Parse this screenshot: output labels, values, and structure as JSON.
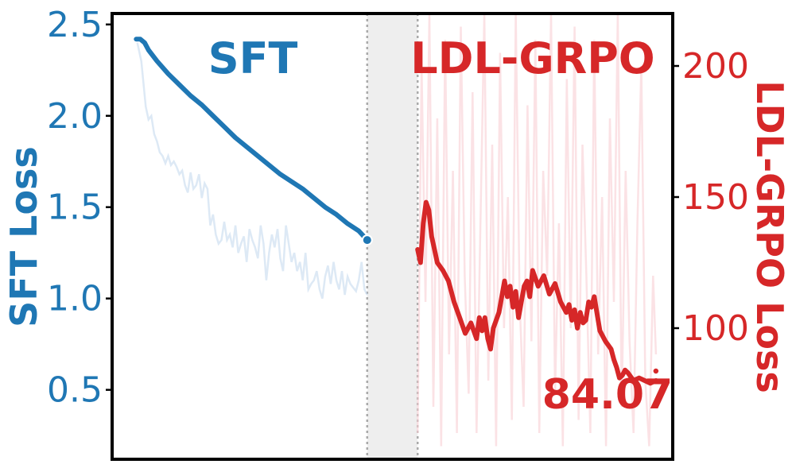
{
  "chart_data": {
    "type": "line",
    "colors": {
      "sft": "#1f77b4",
      "grpo": "#d62728",
      "sft_faint": "#c6dbef",
      "grpo_faint": "#f9cfd3",
      "gap": "#eeeeee",
      "divider": "#aaaaaa"
    },
    "phase_labels": {
      "sft": "SFT",
      "grpo": "LDL-GRPO"
    },
    "left_axis": {
      "label": "SFT Loss",
      "ylim": [
        0.12,
        2.56
      ],
      "ticks": [
        0.5,
        1.0,
        1.5,
        2.0,
        2.5
      ],
      "tick_labels": [
        "0.5",
        "1.0",
        "1.5",
        "2.0",
        "2.5"
      ]
    },
    "right_axis": {
      "label": "LDL-GRPO Loss",
      "ylim": [
        50,
        220
      ],
      "ticks": [
        100,
        150,
        200
      ],
      "tick_labels": [
        "100",
        "150",
        "200"
      ]
    },
    "x_range": [
      0,
      1
    ],
    "sft_end_x": 0.455,
    "grpo_start_x": 0.545,
    "annotation": {
      "text": "84.07",
      "value": 84.07
    },
    "series": [
      {
        "id": "sft_smoothed",
        "axis": "left",
        "x": [
          0.043,
          0.05,
          0.058,
          0.065,
          0.08,
          0.1,
          0.12,
          0.14,
          0.16,
          0.18,
          0.2,
          0.22,
          0.24,
          0.26,
          0.28,
          0.3,
          0.32,
          0.34,
          0.36,
          0.38,
          0.4,
          0.42,
          0.44,
          0.455
        ],
        "y": [
          2.42,
          2.42,
          2.4,
          2.36,
          2.3,
          2.23,
          2.17,
          2.11,
          2.06,
          2.0,
          1.94,
          1.88,
          1.83,
          1.78,
          1.73,
          1.68,
          1.64,
          1.6,
          1.55,
          1.5,
          1.46,
          1.41,
          1.37,
          1.32
        ]
      },
      {
        "id": "sft_raw",
        "axis": "left",
        "x": [
          0.045,
          0.052,
          0.06,
          0.065,
          0.07,
          0.075,
          0.08,
          0.085,
          0.09,
          0.095,
          0.1,
          0.105,
          0.11,
          0.115,
          0.12,
          0.125,
          0.13,
          0.135,
          0.14,
          0.145,
          0.15,
          0.155,
          0.16,
          0.165,
          0.17,
          0.175,
          0.18,
          0.185,
          0.19,
          0.195,
          0.2,
          0.205,
          0.21,
          0.215,
          0.22,
          0.225,
          0.23,
          0.235,
          0.24,
          0.245,
          0.25,
          0.255,
          0.26,
          0.265,
          0.27,
          0.275,
          0.28,
          0.285,
          0.29,
          0.295,
          0.3,
          0.305,
          0.31,
          0.315,
          0.32,
          0.325,
          0.33,
          0.335,
          0.34,
          0.345,
          0.35,
          0.355,
          0.36,
          0.365,
          0.37,
          0.375,
          0.38,
          0.385,
          0.39,
          0.395,
          0.4,
          0.405,
          0.41,
          0.415,
          0.42,
          0.425,
          0.43,
          0.435,
          0.44,
          0.445,
          0.45,
          0.455
        ],
        "y": [
          2.4,
          2.3,
          2.05,
          1.98,
          2.0,
          1.9,
          1.86,
          1.8,
          1.78,
          1.74,
          1.78,
          1.73,
          1.75,
          1.72,
          1.68,
          1.7,
          1.62,
          1.58,
          1.69,
          1.6,
          1.62,
          1.68,
          1.55,
          1.63,
          1.6,
          1.4,
          1.46,
          1.35,
          1.3,
          1.32,
          1.42,
          1.32,
          1.35,
          1.28,
          1.4,
          1.25,
          1.3,
          1.34,
          1.2,
          1.38,
          1.32,
          1.28,
          1.22,
          1.4,
          1.3,
          1.1,
          1.25,
          1.35,
          1.28,
          1.38,
          1.22,
          1.15,
          1.4,
          1.3,
          1.2,
          1.25,
          1.15,
          1.2,
          1.1,
          1.25,
          1.05,
          1.08,
          1.1,
          1.15,
          1.05,
          1.0,
          1.12,
          1.18,
          1.08,
          1.2,
          1.1,
          1.05,
          1.15,
          1.02,
          1.12,
          1.08,
          1.06,
          1.04,
          1.1,
          1.2,
          1.05,
          1.02
        ]
      },
      {
        "id": "grpo_smoothed",
        "axis": "right",
        "x": [
          0.545,
          0.55,
          0.555,
          0.56,
          0.565,
          0.57,
          0.575,
          0.58,
          0.59,
          0.6,
          0.61,
          0.62,
          0.63,
          0.64,
          0.65,
          0.655,
          0.66,
          0.665,
          0.67,
          0.675,
          0.68,
          0.69,
          0.7,
          0.705,
          0.71,
          0.715,
          0.72,
          0.725,
          0.73,
          0.735,
          0.74,
          0.745,
          0.75,
          0.76,
          0.77,
          0.78,
          0.79,
          0.8,
          0.81,
          0.815,
          0.82,
          0.825,
          0.83,
          0.835,
          0.84,
          0.845,
          0.85,
          0.855,
          0.86,
          0.87,
          0.88,
          0.89,
          0.895,
          0.9,
          0.905,
          0.91,
          0.915,
          0.92,
          0.93,
          0.94,
          0.95,
          0.96,
          0.97
        ],
        "y": [
          130,
          125,
          140,
          148,
          145,
          135,
          130,
          125,
          122,
          118,
          110,
          104,
          98,
          102,
          96,
          104,
          99,
          104,
          96,
          92,
          100,
          106,
          118,
          112,
          116,
          108,
          114,
          104,
          110,
          116,
          118,
          112,
          122,
          116,
          120,
          113,
          117,
          110,
          106,
          109,
          103,
          107,
          100,
          106,
          102,
          103,
          110,
          108,
          112,
          99,
          95,
          92,
          88,
          85,
          81,
          82,
          84,
          83,
          80,
          81,
          80,
          79,
          80
        ]
      },
      {
        "id": "grpo_raw",
        "axis": "right",
        "x": [
          0.545,
          0.552,
          0.559,
          0.566,
          0.573,
          0.58,
          0.587,
          0.594,
          0.601,
          0.608,
          0.615,
          0.622,
          0.629,
          0.636,
          0.643,
          0.65,
          0.657,
          0.664,
          0.671,
          0.678,
          0.685,
          0.692,
          0.699,
          0.706,
          0.713,
          0.72,
          0.727,
          0.734,
          0.741,
          0.748,
          0.755,
          0.762,
          0.769,
          0.776,
          0.783,
          0.79,
          0.797,
          0.804,
          0.811,
          0.818,
          0.825,
          0.832,
          0.839,
          0.846,
          0.853,
          0.86,
          0.867,
          0.874,
          0.881,
          0.888,
          0.895,
          0.902,
          0.909,
          0.916,
          0.923,
          0.93,
          0.937,
          0.944,
          0.951,
          0.958,
          0.965,
          0.97
        ],
        "y": [
          60,
          200,
          110,
          220,
          70,
          180,
          55,
          210,
          90,
          160,
          60,
          215,
          120,
          75,
          190,
          60,
          140,
          220,
          80,
          170,
          55,
          205,
          100,
          150,
          65,
          220,
          110,
          70,
          185,
          95,
          210,
          60,
          160,
          120,
          220,
          75,
          140,
          55,
          195,
          100,
          215,
          65,
          170,
          120,
          60,
          210,
          90,
          150,
          55,
          180,
          110,
          220,
          70,
          160,
          95,
          60,
          140,
          200,
          80,
          55,
          120,
          90
        ]
      }
    ]
  }
}
